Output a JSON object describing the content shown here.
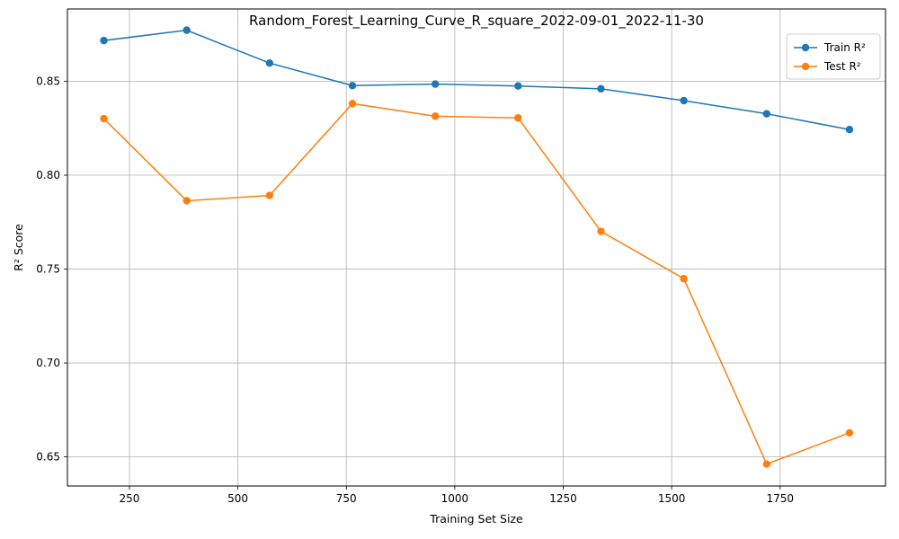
{
  "chart_data": {
    "type": "line",
    "title": "Random_Forest_Learning_Curve_R_square_2022-09-01_2022-11-30",
    "xlabel": "Training Set Size",
    "ylabel": "R² Score",
    "x": [
      191,
      382,
      573,
      764,
      955,
      1146,
      1337,
      1528,
      1719,
      1910
    ],
    "xlim": [
      107,
      1993
    ],
    "ylim": [
      0.6345,
      0.8885
    ],
    "xticks": [
      250,
      500,
      750,
      1000,
      1250,
      1500,
      1750
    ],
    "yticks": [
      0.65,
      0.7,
      0.75,
      0.8,
      0.85
    ],
    "grid": true,
    "legend_position": "top-right",
    "series": [
      {
        "name": "Train R²",
        "color": "#1f77b4",
        "values": [
          0.8717,
          0.8772,
          0.8597,
          0.8477,
          0.8485,
          0.8475,
          0.846,
          0.8397,
          0.8327,
          0.8243
        ]
      },
      {
        "name": "Test R²",
        "color": "#ff7f0e",
        "values": [
          0.8301,
          0.7864,
          0.7892,
          0.8381,
          0.8314,
          0.8305,
          0.7701,
          0.7449,
          0.6462,
          0.6628
        ]
      }
    ]
  }
}
